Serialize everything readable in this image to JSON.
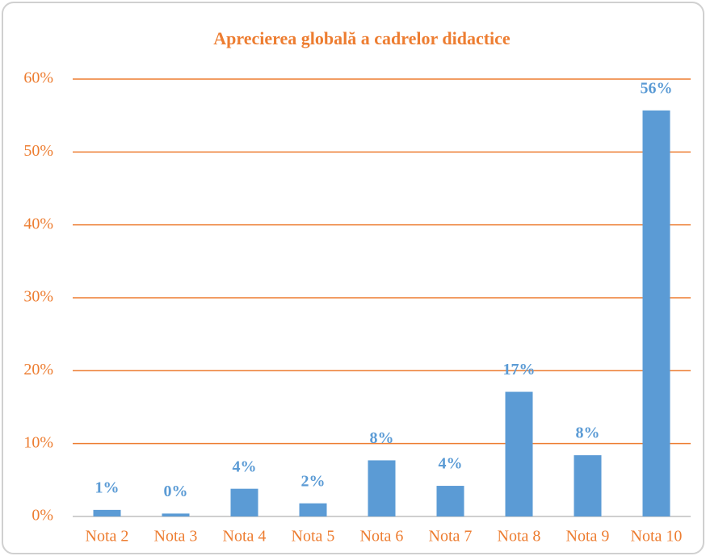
{
  "chart_data": {
    "type": "bar",
    "title": "Aprecierea globală a cadrelor didactice",
    "categories": [
      "Nota 2",
      "Nota 3",
      "Nota 4",
      "Nota 5",
      "Nota 6",
      "Nota 7",
      "Nota 8",
      "Nota 9",
      "Nota 10"
    ],
    "values": [
      0.9,
      0.4,
      3.8,
      1.8,
      7.7,
      4.2,
      17.1,
      8.4,
      55.7
    ],
    "value_labels": [
      "1%",
      "0%",
      "4%",
      "2%",
      "8%",
      "4%",
      "17%",
      "8%",
      "56%"
    ],
    "color": "#5b9bd5",
    "ylim": [
      0,
      60
    ],
    "yticks": [
      {
        "value": 0,
        "label": "0%"
      },
      {
        "value": 10,
        "label": "10%"
      },
      {
        "value": 20,
        "label": "20%"
      },
      {
        "value": 30,
        "label": "30%"
      },
      {
        "value": 40,
        "label": "40%"
      },
      {
        "value": 50,
        "label": "50%"
      },
      {
        "value": 60,
        "label": "60%"
      }
    ],
    "grid": true
  }
}
